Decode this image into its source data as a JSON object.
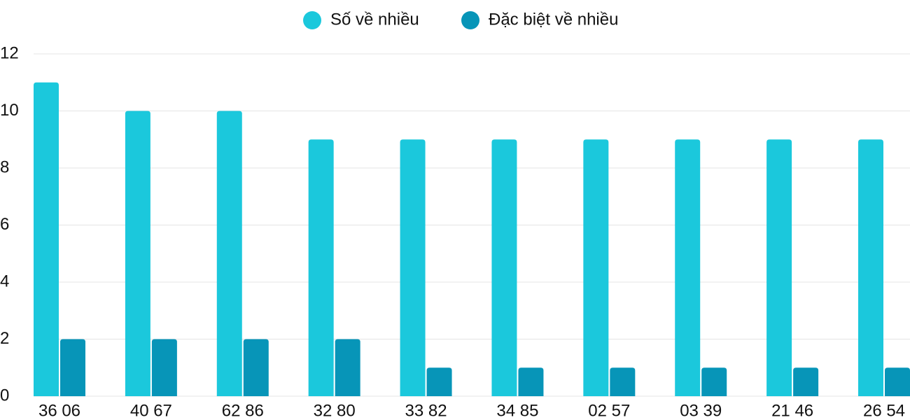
{
  "chart_data": {
    "type": "bar",
    "categories": [
      "36 06",
      "40 67",
      "62 86",
      "32 80",
      "33 82",
      "34 85",
      "02 57",
      "03 39",
      "21 46",
      "26 54"
    ],
    "series": [
      {
        "name": "Số về nhiều",
        "color": "#1bc8dc",
        "values": [
          11,
          10,
          10,
          9,
          9,
          9,
          9,
          9,
          9,
          9
        ]
      },
      {
        "name": "Đặc biệt về nhiều",
        "color": "#0795b8",
        "values": [
          2,
          2,
          2,
          2,
          1,
          1,
          1,
          1,
          1,
          1
        ]
      }
    ],
    "ylim": [
      0,
      12
    ],
    "yticks": [
      0,
      2,
      4,
      6,
      8,
      10,
      12
    ],
    "grid": true,
    "legend": "top"
  }
}
